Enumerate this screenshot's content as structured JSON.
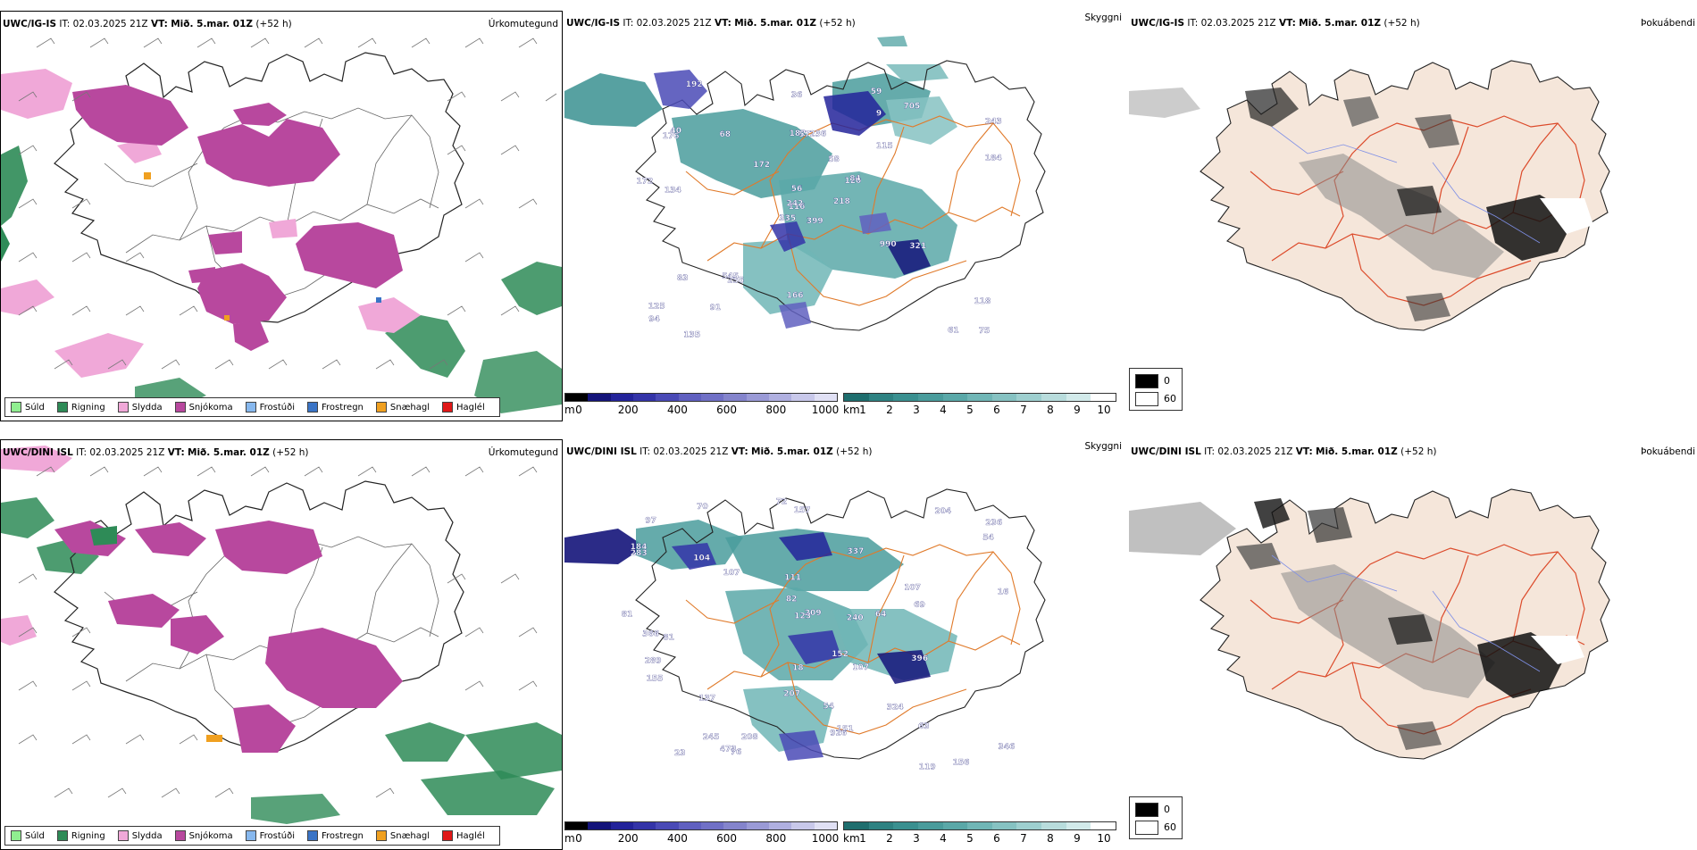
{
  "colors": {
    "drizzle": "#90ee90",
    "rain": "#2e8b57",
    "sleet": "#f0a8d8",
    "snow": "#b8489e",
    "freezing_drizzle": "#87b8ee",
    "freezing_rain": "#3a74c6",
    "snow_pellets": "#f0a020",
    "hail": "#e01818",
    "coast": "#222222",
    "roads": "#e07a2a",
    "roads_red": "#dc4a2a",
    "land_tint": "#f5e6da",
    "rivers": "#7e8fe6"
  },
  "icons": [
    "wind-barb-icon",
    "location-marker-icon"
  ],
  "rows": [
    {
      "id": "top",
      "model": "UWC/IG-IS",
      "it_label": "IT:",
      "it_value": "02.03.2025 21Z",
      "vt_label": "VT:",
      "vt_value": "Mið. 5.mar. 01Z",
      "lead": "(+52 h)",
      "precip_title": "Úrkomutegund",
      "cloud_title": "Skyggni",
      "fog_title": "Þokuábendi",
      "cloud_labels": [
        "399",
        "176",
        "116",
        "125",
        "120",
        "255",
        "59",
        "236",
        "9",
        "218",
        "192",
        "75",
        "134",
        "243",
        "335",
        "115",
        "135",
        "182",
        "58",
        "83",
        "172",
        "94",
        "91",
        "57",
        "84",
        "321",
        "40",
        "36",
        "172",
        "990",
        "184",
        "242",
        "166",
        "56",
        "68",
        "705",
        "545",
        "61",
        "118"
      ]
    },
    {
      "id": "bot",
      "model": "UWC/DINI ISL",
      "it_label": "IT:",
      "it_value": "02.03.2025 21Z",
      "vt_label": "VT:",
      "vt_value": "Mið. 5.mar. 01Z",
      "lead": "(+52 h)",
      "precip_title": "Úrkomutegund",
      "cloud_title": "Skyggni",
      "fog_title": "Þokuábendi",
      "cloud_labels": [
        "81",
        "157",
        "107",
        "236",
        "184",
        "156",
        "81",
        "337",
        "111",
        "204",
        "209",
        "396",
        "72",
        "283",
        "104",
        "137",
        "151",
        "366",
        "152",
        "207",
        "324",
        "63",
        "54",
        "82",
        "245",
        "123",
        "107",
        "70",
        "76",
        "926",
        "289",
        "119",
        "240",
        "23",
        "473",
        "155",
        "69",
        "97",
        "208",
        "107",
        "54",
        "64",
        "346",
        "16",
        "18"
      ]
    }
  ],
  "precip_legend": [
    {
      "label": "Súld",
      "color_key": "drizzle"
    },
    {
      "label": "Rigning",
      "color_key": "rain"
    },
    {
      "label": "Slydda",
      "color_key": "sleet"
    },
    {
      "label": "Snjókoma",
      "color_key": "snow"
    },
    {
      "label": "Frostúði",
      "color_key": "freezing_drizzle"
    },
    {
      "label": "Frostregn",
      "color_key": "freezing_rain"
    },
    {
      "label": "Snæhagl",
      "color_key": "snow_pellets"
    },
    {
      "label": "Haglél",
      "color_key": "hail"
    }
  ],
  "cloud_base_scale": {
    "unit": "m",
    "ticks": [
      "0",
      "200",
      "400",
      "600",
      "800",
      "1000"
    ],
    "colors": [
      "#000000",
      "#14147a",
      "#23239a",
      "#3434a8",
      "#4a4ab6",
      "#6060c0",
      "#7070c6",
      "#8484cc",
      "#9a9ad6",
      "#b0b0e0",
      "#c8c8ea",
      "#e0e0f4"
    ]
  },
  "cloud_cover_scale": {
    "unit": "km",
    "ticks": [
      "1",
      "2",
      "3",
      "4",
      "5",
      "6",
      "7",
      "8",
      "9",
      "10"
    ],
    "colors": [
      "#1e6e6e",
      "#2e8282",
      "#3a9090",
      "#4a9c9c",
      "#5aa8a8",
      "#70b6b6",
      "#86c2c2",
      "#9ecfcf",
      "#b8dcdc",
      "#d2eaea",
      "#ffffff"
    ]
  },
  "fog_scale": {
    "low": "0",
    "high": "60"
  }
}
